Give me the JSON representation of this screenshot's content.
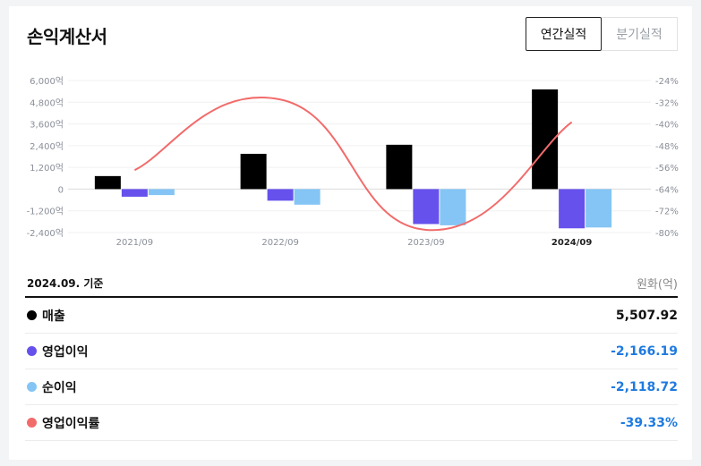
{
  "header": {
    "title": "손익계산서"
  },
  "tabs": [
    {
      "label": "연간실적",
      "active": true
    },
    {
      "label": "분기실적",
      "active": false
    }
  ],
  "colors": {
    "revenue": "#000000",
    "operating_income": "#6651ec",
    "net_income": "#84c5f5",
    "operating_margin": "#f26b6b",
    "negative_value": "#1f7ae0"
  },
  "chart_data": {
    "type": "bar",
    "categories": [
      "2021/09",
      "2022/09",
      "2023/09",
      "2024/09"
    ],
    "series": [
      {
        "name": "매출",
        "type": "bar",
        "values": [
          720,
          1950,
          2450,
          5507.92
        ]
      },
      {
        "name": "영업이익",
        "type": "bar",
        "values": [
          -420,
          -640,
          -1930,
          -2166.19
        ]
      },
      {
        "name": "순이익",
        "type": "bar",
        "values": [
          -330,
          -860,
          -2000,
          -2118.72
        ]
      },
      {
        "name": "영업이익률",
        "type": "line",
        "axis": "right",
        "values": [
          -57,
          -31,
          -79,
          -39.33
        ]
      }
    ],
    "left_axis": {
      "ticks": [
        6000,
        4800,
        3600,
        2400,
        1200,
        0,
        -1200,
        -2400
      ],
      "tick_labels": [
        "6,000억",
        "4,800억",
        "3,600억",
        "2,400억",
        "1,200억",
        "0",
        "-1,200억",
        "-2,400억"
      ],
      "ylim": [
        -2400,
        6000
      ]
    },
    "right_axis": {
      "tick_labels": [
        "-24%",
        "-32%",
        "-40%",
        "-48%",
        "-56%",
        "-64%",
        "-72%",
        "-80%"
      ],
      "ylim": [
        -80,
        -24
      ]
    },
    "grid": true,
    "highlight_category": "2024/09"
  },
  "summary": {
    "basis": "2024.09. 기준",
    "unit": "원화(억)",
    "rows": [
      {
        "label": "매출",
        "value": "5,507.92"
      },
      {
        "label": "영업이익",
        "value": "-2,166.19"
      },
      {
        "label": "순이익",
        "value": "-2,118.72"
      },
      {
        "label": "영업이익률",
        "value": "-39.33%"
      }
    ]
  }
}
